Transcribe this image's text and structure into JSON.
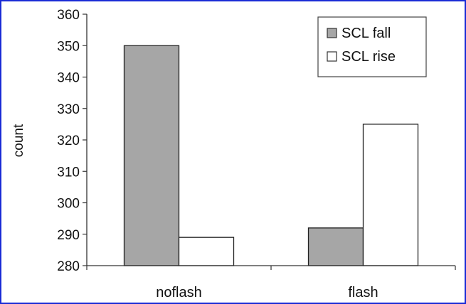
{
  "chart_data": {
    "type": "bar",
    "categories": [
      "noflash",
      "flash"
    ],
    "series": [
      {
        "name": "SCL fall",
        "values": [
          350,
          292
        ],
        "color": "#a6a6a6"
      },
      {
        "name": "SCL rise",
        "values": [
          289,
          325
        ],
        "color": "#ffffff"
      }
    ],
    "ylabel": "count",
    "ylim": [
      280,
      360
    ],
    "yticks": [
      280,
      290,
      300,
      310,
      320,
      330,
      340,
      350,
      360
    ],
    "grid": false,
    "legend": "top-right"
  }
}
